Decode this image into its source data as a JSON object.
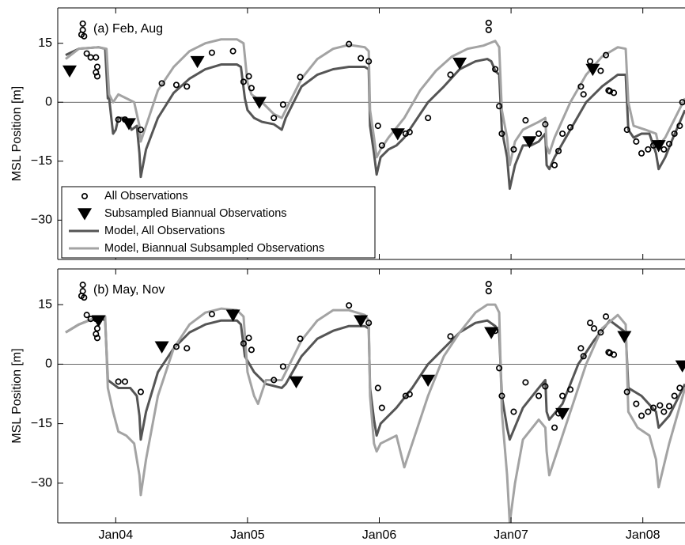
{
  "chart_data": [
    {
      "type": "line",
      "annotation": "(a) Feb, Aug",
      "ylabel": "MSL Position [m]",
      "xlim": [
        2003.56,
        2008.32
      ],
      "ylim": [
        -40,
        24
      ],
      "yticks": [
        15,
        0,
        {
          "value": -15,
          "label": "−15"
        },
        {
          "value": -30,
          "label": "−30"
        }
      ],
      "hline": 0,
      "legend": "lower left",
      "series": [
        {
          "name": "All Observations",
          "color": "#000000",
          "mode": "markers",
          "marker": "circle",
          "x": [
            2003.75,
            2003.75,
            2003.76,
            2003.74,
            2003.78,
            2003.81,
            2003.85,
            2003.86,
            2003.85,
            2003.86,
            2004.02,
            2004.07,
            2004.19,
            2004.35,
            2004.46,
            2004.54,
            2004.73,
            2004.89,
            2004.97,
            2005.01,
            2005.03,
            2005.2,
            2005.27,
            2005.4,
            2005.77,
            2005.86,
            2005.92,
            2005.99,
            2006.02,
            2006.2,
            2006.23,
            2006.37,
            2006.54,
            2006.83,
            2006.83,
            2006.88,
            2006.91,
            2006.93,
            2007.02,
            2007.11,
            2007.21,
            2007.26,
            2007.33,
            2007.36,
            2007.39,
            2007.45,
            2007.53,
            2007.55,
            2007.6,
            2007.63,
            2007.68,
            2007.72,
            2007.74,
            2007.75,
            2007.78,
            2007.88,
            2007.95,
            2007.99,
            2008.04,
            2008.08,
            2008.13,
            2008.16,
            2008.2,
            2008.24,
            2008.28,
            2008.3
          ],
          "values": [
            20,
            18.4,
            16.8,
            17.2,
            12.4,
            11.4,
            11.4,
            9,
            7.6,
            6.6,
            -4.4,
            -4.4,
            -7,
            4.8,
            4.4,
            4,
            12.6,
            13,
            5.2,
            6.6,
            3.6,
            -4,
            -0.6,
            6.4,
            14.8,
            11.2,
            10.4,
            -6,
            -11,
            -8,
            -7.6,
            -4,
            7,
            20.2,
            18.4,
            8.4,
            -1,
            -8,
            -12,
            -4.6,
            -8,
            -5.6,
            -16,
            -12.4,
            -8,
            -6.4,
            4,
            2,
            10.4,
            9,
            8,
            12,
            3,
            2.8,
            2.4,
            -7,
            -10,
            -13,
            -12,
            -11,
            -10.4,
            -12,
            -10.6,
            -8,
            -6,
            0
          ]
        },
        {
          "name": "Subsampled Biannual Observations",
          "color": "#000000",
          "mode": "markers",
          "marker": "triangle-down",
          "x": [
            2003.65,
            2004.1,
            2004.62,
            2005.09,
            2006.14,
            2006.61,
            2007.14,
            2007.62,
            2008.12
          ],
          "values": [
            8,
            -5.4,
            10.4,
            0,
            -8,
            10,
            -10,
            8.4,
            -11
          ]
        },
        {
          "name": "Model, All Observations",
          "color": "#555555",
          "mode": "line",
          "x": [
            2003.62,
            2003.72,
            2003.87,
            2003.92,
            2003.94,
            2003.95,
            2003.98,
            2004.0,
            2004.02,
            2004.08,
            2004.12,
            2004.16,
            2004.18,
            2004.19,
            2004.23,
            2004.32,
            2004.44,
            2004.56,
            2004.68,
            2004.8,
            2004.92,
            2004.95,
            2004.98,
            2005.0,
            2005.05,
            2005.11,
            2005.2,
            2005.26,
            2005.29,
            2005.41,
            2005.53,
            2005.65,
            2005.77,
            2005.89,
            2005.92,
            2005.93,
            2005.96,
            2005.98,
            2006.01,
            2006.07,
            2006.13,
            2006.19,
            2006.25,
            2006.37,
            2006.49,
            2006.61,
            2006.73,
            2006.82,
            2006.85,
            2006.88,
            2006.91,
            2006.93,
            2006.97,
            2006.99,
            2007.03,
            2007.09,
            2007.15,
            2007.21,
            2007.26,
            2007.27,
            2007.29,
            2007.33,
            2007.45,
            2007.57,
            2007.69,
            2007.81,
            2007.87,
            2007.89,
            2007.93,
            2007.99,
            2008.05,
            2008.1,
            2008.12,
            2008.17,
            2008.23,
            2008.32
          ],
          "values": [
            12,
            13.6,
            14,
            13.6,
            1,
            1,
            -8,
            -7,
            -4,
            -4,
            -7,
            -6,
            -13,
            -19,
            -12,
            -4,
            2.4,
            6,
            8.4,
            9.6,
            9.6,
            9,
            1,
            -2,
            -4,
            -5,
            -5.6,
            -7,
            -4,
            4,
            7,
            8.4,
            9,
            9,
            8.4,
            -6,
            -13,
            -18.4,
            -14,
            -12,
            -11,
            -9,
            -6,
            0,
            4,
            8.4,
            10.4,
            11,
            10.4,
            8,
            7,
            -7,
            -14,
            -22,
            -16,
            -11,
            -11,
            -10,
            -8,
            -16,
            -17,
            -14,
            -7,
            0,
            4,
            7,
            7,
            -7,
            -9,
            -8,
            -8,
            -13,
            -17,
            -14,
            -9,
            -2
          ]
        },
        {
          "name": "Model, Biannual Subsampled Observations",
          "color": "#a3a3a3",
          "mode": "line",
          "x": [
            2003.62,
            2003.72,
            2003.87,
            2003.93,
            2003.95,
            2003.98,
            2004.0,
            2004.02,
            2004.08,
            2004.14,
            2004.18,
            2004.19,
            2004.23,
            2004.32,
            2004.44,
            2004.56,
            2004.68,
            2004.8,
            2004.92,
            2004.97,
            2005.0,
            2005.03,
            2005.11,
            2005.2,
            2005.26,
            2005.29,
            2005.41,
            2005.53,
            2005.65,
            2005.77,
            2005.89,
            2005.92,
            2005.93,
            2005.96,
            2005.98,
            2006.01,
            2006.07,
            2006.19,
            2006.31,
            2006.43,
            2006.55,
            2006.67,
            2006.79,
            2006.88,
            2006.91,
            2006.93,
            2006.97,
            2006.99,
            2007.03,
            2007.09,
            2007.21,
            2007.26,
            2007.27,
            2007.29,
            2007.33,
            2007.45,
            2007.57,
            2007.69,
            2007.81,
            2007.87,
            2007.89,
            2007.93,
            2008.02,
            2008.1,
            2008.12,
            2008.17,
            2008.23,
            2008.32
          ],
          "values": [
            11,
            13.6,
            14,
            13.6,
            2,
            0,
            1,
            2,
            1,
            0,
            -6,
            -10,
            -6,
            3,
            9,
            13,
            15,
            16,
            16,
            15,
            5,
            2,
            0,
            -3,
            -4,
            -2,
            6,
            11,
            13.6,
            14.6,
            14,
            13,
            -2,
            -9,
            -14,
            -12,
            -9,
            -4,
            3,
            8,
            11.6,
            13.6,
            14.4,
            15.6,
            14,
            -2,
            -9,
            -16,
            -10,
            -7,
            -5,
            -4,
            -11,
            -13,
            -9,
            0,
            7,
            11.6,
            14,
            13.6,
            0,
            -6,
            -7,
            -8,
            -11,
            -9,
            -5,
            1
          ]
        }
      ]
    },
    {
      "type": "line",
      "annotation": "(b) May, Nov",
      "ylabel": "MSL Position [m]",
      "xlim": [
        2003.56,
        2008.32
      ],
      "ylim": [
        -40,
        24
      ],
      "yticks": [
        15,
        0,
        {
          "value": -15,
          "label": "−15"
        },
        {
          "value": -30,
          "label": "−30"
        }
      ],
      "xticks": [
        {
          "value": 2004,
          "label": "Jan04"
        },
        {
          "value": 2005,
          "label": "Jan05"
        },
        {
          "value": 2006,
          "label": "Jan06"
        },
        {
          "value": 2007,
          "label": "Jan07"
        },
        {
          "value": 2008,
          "label": "Jan08"
        }
      ],
      "hline": 0,
      "series": [
        {
          "color": "#000000",
          "mode": "markers",
          "marker": "circle",
          "x": [
            2003.75,
            2003.75,
            2003.76,
            2003.74,
            2003.78,
            2003.81,
            2003.85,
            2003.86,
            2003.85,
            2003.86,
            2004.02,
            2004.07,
            2004.19,
            2004.35,
            2004.46,
            2004.54,
            2004.73,
            2004.89,
            2004.97,
            2005.01,
            2005.03,
            2005.2,
            2005.27,
            2005.4,
            2005.77,
            2005.86,
            2005.92,
            2005.99,
            2006.02,
            2006.2,
            2006.23,
            2006.37,
            2006.54,
            2006.83,
            2006.83,
            2006.88,
            2006.91,
            2006.93,
            2007.02,
            2007.11,
            2007.21,
            2007.26,
            2007.33,
            2007.36,
            2007.39,
            2007.45,
            2007.53,
            2007.55,
            2007.6,
            2007.63,
            2007.68,
            2007.72,
            2007.74,
            2007.75,
            2007.78,
            2007.88,
            2007.95,
            2007.99,
            2008.04,
            2008.08,
            2008.13,
            2008.16,
            2008.2,
            2008.24,
            2008.28,
            2008.3
          ],
          "values": [
            20,
            18.4,
            16.8,
            17.2,
            12.4,
            11.4,
            11.4,
            9,
            7.6,
            6.6,
            -4.4,
            -4.4,
            -7,
            4.8,
            4.4,
            4,
            12.6,
            13,
            5.2,
            6.6,
            3.6,
            -4,
            -0.6,
            6.4,
            14.8,
            11.2,
            10.4,
            -6,
            -11,
            -8,
            -7.6,
            -4,
            7,
            20.2,
            18.4,
            8.4,
            -1,
            -8,
            -12,
            -4.6,
            -8,
            -5.6,
            -16,
            -12.4,
            -8,
            -6.4,
            4,
            2,
            10.4,
            9,
            8,
            12,
            3,
            2.8,
            2.4,
            -7,
            -10,
            -13,
            -12,
            -11,
            -10.4,
            -12,
            -10.6,
            -8,
            -6,
            0
          ]
        },
        {
          "color": "#000000",
          "mode": "markers",
          "marker": "triangle-down",
          "x": [
            2003.87,
            2004.35,
            2004.89,
            2005.37,
            2005.86,
            2006.37,
            2006.85,
            2007.39,
            2007.86,
            2008.3
          ],
          "values": [
            11,
            4.4,
            12.4,
            -4.4,
            11,
            -4,
            8,
            -12.4,
            7,
            -0.4
          ]
        },
        {
          "color": "#555555",
          "mode": "line",
          "x": [
            2003.62,
            2003.72,
            2003.87,
            2003.92,
            2003.94,
            2003.98,
            2004.02,
            2004.11,
            2004.16,
            2004.18,
            2004.19,
            2004.23,
            2004.32,
            2004.44,
            2004.56,
            2004.68,
            2004.8,
            2004.92,
            2004.95,
            2004.98,
            2005.05,
            2005.14,
            2005.26,
            2005.29,
            2005.41,
            2005.53,
            2005.65,
            2005.77,
            2005.89,
            2005.92,
            2005.93,
            2005.96,
            2005.98,
            2006.01,
            2006.13,
            2006.25,
            2006.37,
            2006.49,
            2006.61,
            2006.73,
            2006.82,
            2006.88,
            2006.91,
            2006.93,
            2006.97,
            2006.99,
            2007.09,
            2007.21,
            2007.26,
            2007.27,
            2007.29,
            2007.39,
            2007.51,
            2007.63,
            2007.75,
            2007.87,
            2007.89,
            2007.99,
            2008.1,
            2008.12,
            2008.2,
            2008.32
          ],
          "values": [
            8,
            10,
            12,
            11,
            -4,
            -5,
            -6,
            -6,
            -8,
            -13,
            -19,
            -12,
            -2,
            4,
            8,
            10,
            11,
            11,
            10,
            2,
            -2,
            -5,
            -6,
            -5,
            2,
            6.4,
            8.4,
            9.6,
            9.6,
            9,
            -6,
            -14,
            -18,
            -15,
            -11,
            -6,
            0,
            4,
            8,
            10.4,
            11,
            9.6,
            8,
            -8,
            -16,
            -19,
            -11,
            -6,
            -4,
            -12,
            -14,
            -10,
            0,
            6,
            11,
            8,
            -6,
            -8,
            -12,
            -16,
            -13,
            -5
          ]
        },
        {
          "color": "#a3a3a3",
          "mode": "line",
          "x": [
            2003.62,
            2003.72,
            2003.87,
            2003.92,
            2003.94,
            2003.98,
            2004.02,
            2004.08,
            2004.14,
            2004.18,
            2004.19,
            2004.23,
            2004.32,
            2004.44,
            2004.56,
            2004.68,
            2004.8,
            2004.92,
            2004.97,
            2005.0,
            2005.05,
            2005.08,
            2005.14,
            2005.26,
            2005.29,
            2005.41,
            2005.53,
            2005.65,
            2005.77,
            2005.89,
            2005.92,
            2005.93,
            2005.96,
            2005.98,
            2006.01,
            2006.13,
            2006.19,
            2006.25,
            2006.37,
            2006.49,
            2006.61,
            2006.73,
            2006.82,
            2006.88,
            2006.91,
            2006.93,
            2006.97,
            2006.99,
            2007.03,
            2007.09,
            2007.21,
            2007.26,
            2007.27,
            2007.29,
            2007.33,
            2007.45,
            2007.57,
            2007.69,
            2007.81,
            2007.87,
            2007.89,
            2007.96,
            2008.05,
            2008.1,
            2008.12,
            2008.2,
            2008.32
          ],
          "values": [
            8,
            10,
            12,
            12,
            -6,
            -12,
            -17,
            -18,
            -20,
            -28,
            -33,
            -24,
            -8,
            4,
            10,
            13,
            14,
            13.6,
            12,
            -2,
            -8,
            -10,
            -4,
            -4,
            -2,
            6,
            11,
            13.6,
            13.6,
            12.4,
            11,
            -8,
            -20,
            -22,
            -20,
            -18,
            -26,
            -20,
            -8,
            2,
            8,
            13,
            15,
            15,
            13,
            -12,
            -28,
            -40,
            -30,
            -19,
            -14,
            -16,
            -22,
            -28,
            -24,
            -12,
            0,
            9,
            12.4,
            10,
            -12,
            -16,
            -18,
            -24,
            -31,
            -20,
            -6
          ]
        }
      ]
    }
  ]
}
